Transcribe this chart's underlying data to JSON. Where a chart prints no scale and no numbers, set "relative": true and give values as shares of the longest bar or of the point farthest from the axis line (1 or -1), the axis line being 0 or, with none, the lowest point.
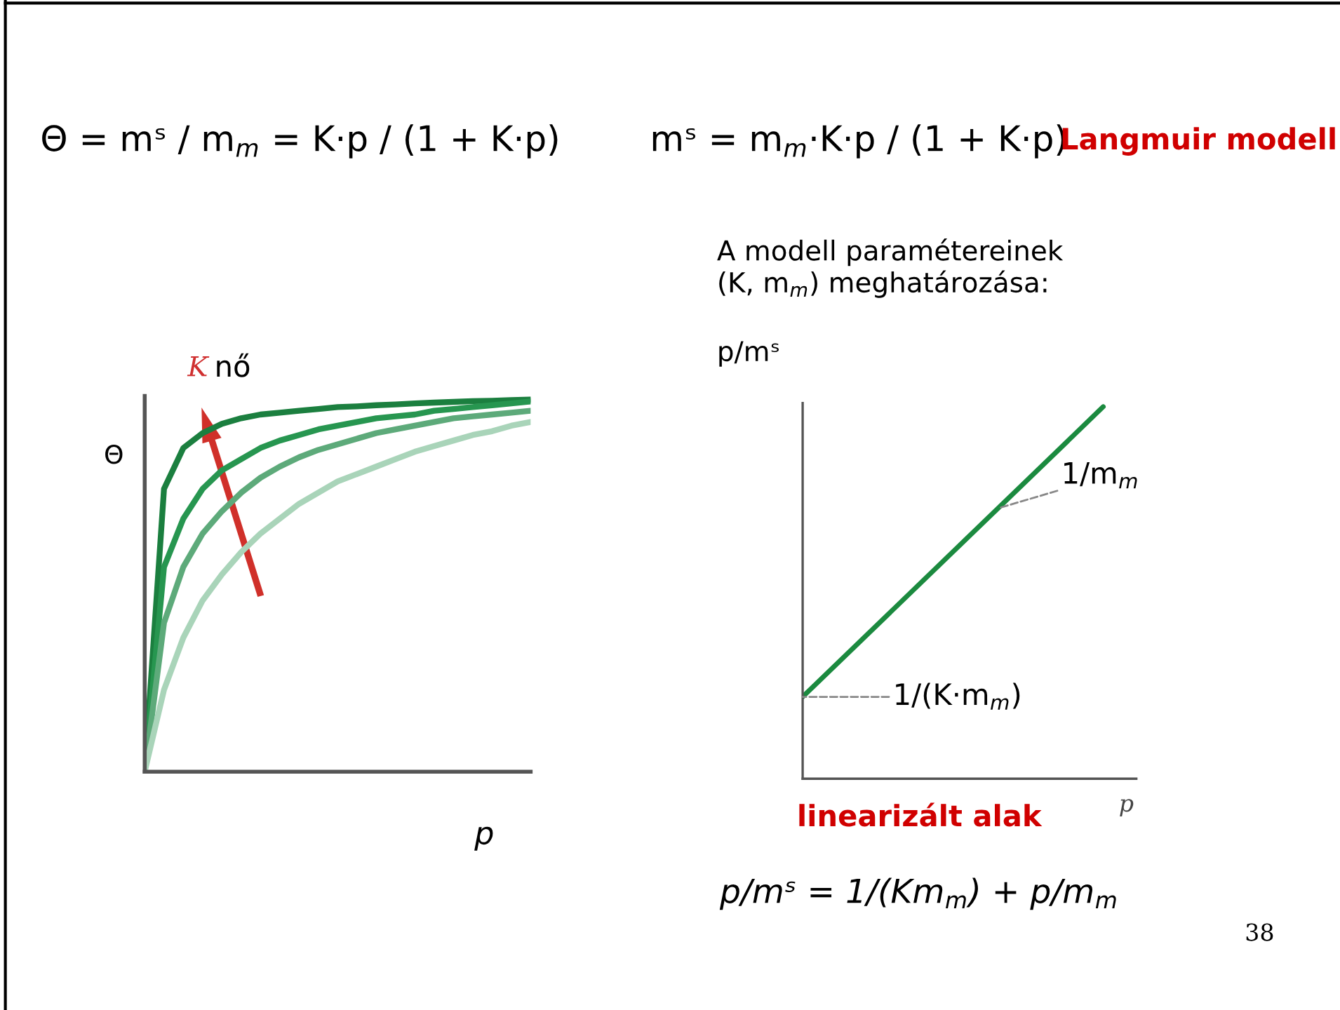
{
  "chart_data": [
    {
      "type": "line",
      "relative": true,
      "ylabel": "Θ",
      "xlabel": "p",
      "categories": [
        null,
        null,
        null,
        null,
        null,
        null,
        null,
        null,
        null,
        null,
        null,
        null,
        null,
        null,
        null,
        null,
        null,
        null,
        null,
        null,
        null
      ],
      "series": [
        {
          "color": "#1b7f3f",
          "values": [
            0,
            0.76,
            0.87,
            0.91,
            0.935,
            0.95,
            0.96,
            0.965,
            0.97,
            0.975,
            0.98,
            0.982,
            0.985,
            0.987,
            0.99,
            0.992,
            0.994,
            0.996,
            0.997,
            0.999,
            1
          ]
        },
        {
          "color": "#279650",
          "values": [
            0,
            0.55,
            0.68,
            0.76,
            0.81,
            0.84,
            0.87,
            0.89,
            0.905,
            0.92,
            0.93,
            0.94,
            0.95,
            0.955,
            0.96,
            0.97,
            0.975,
            0.98,
            0.985,
            0.99,
            0.995
          ]
        },
        {
          "color": "#5daa7a",
          "values": [
            0,
            0.4,
            0.55,
            0.64,
            0.7,
            0.75,
            0.79,
            0.82,
            0.845,
            0.865,
            0.88,
            0.895,
            0.91,
            0.92,
            0.93,
            0.94,
            0.95,
            0.955,
            0.96,
            0.965,
            0.97
          ]
        },
        {
          "color": "#a9d4b9",
          "values": [
            0,
            0.22,
            0.36,
            0.46,
            0.53,
            0.59,
            0.64,
            0.68,
            0.72,
            0.75,
            0.78,
            0.8,
            0.82,
            0.84,
            0.86,
            0.875,
            0.89,
            0.905,
            0.915,
            0.93,
            0.94
          ]
        }
      ],
      "annotations": [
        "Θ = mˢ / m$_{m}$ = K·p / (1 + K·p)",
        "K",
        "nő"
      ]
    },
    {
      "type": "line",
      "relative": true,
      "title": "A modell paramétereinek\n(K, m$_{m}$) meghatározása:",
      "ylabel": "p/mˢ",
      "xlabel": "p",
      "categories": [
        null,
        null
      ],
      "series": [
        {
          "color": "#1b8a3f",
          "values": [
            0.22,
            1
          ]
        }
      ],
      "annotations": [
        "mˢ = m$_{m}$·K·p / (1 + K·p)",
        "Langmuir modell",
        "1/m$_{m}$",
        "1/(K·m$_{m}$)",
        "linearizált alak",
        "p/mˢ = 1/(Km$_{m}$) + p/m$_{m}$",
        "38"
      ]
    }
  ]
}
